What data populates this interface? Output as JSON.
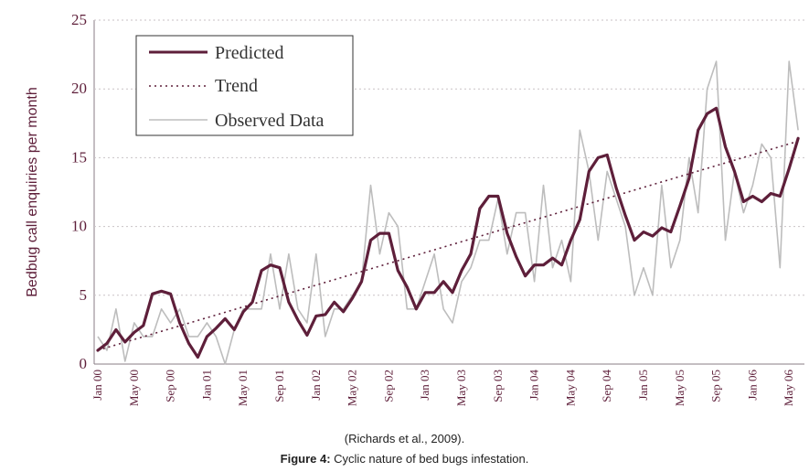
{
  "chart_data": {
    "type": "line",
    "title": "",
    "xlabel": "",
    "ylabel": "Bedbug call enquiries per month",
    "ylim": [
      0,
      25
    ],
    "yticks": [
      "0",
      "5",
      "10",
      "15",
      "20",
      "25"
    ],
    "xlim": [
      0,
      77
    ],
    "x_tick_labels": [
      "Jan 00",
      "May 00",
      "Sep 00",
      "Jan 01",
      "May 01",
      "Sep 01",
      "Jan 02",
      "May 02",
      "Sep 02",
      "Jan 03",
      "May 03",
      "Sep 03",
      "Jan 04",
      "May 04",
      "Sep 04",
      "Jan 05",
      "May 05",
      "Sep 05",
      "Jan 06",
      "May 06"
    ],
    "x_tick_months": [
      0,
      4,
      8,
      12,
      16,
      20,
      24,
      28,
      32,
      36,
      40,
      44,
      48,
      52,
      56,
      60,
      64,
      68,
      72,
      76
    ],
    "legend": {
      "position": "top-left",
      "entries": [
        "Predicted",
        "Trend",
        "Observed Data"
      ]
    },
    "series": [
      {
        "name": "Predicted",
        "style": "solid-thick",
        "color": "#5e1f3a",
        "values": [
          1.0,
          1.5,
          2.5,
          1.6,
          2.3,
          2.8,
          5.1,
          5.3,
          5.1,
          3.0,
          1.5,
          0.5,
          2.0,
          2.6,
          3.3,
          2.5,
          3.8,
          4.5,
          6.8,
          7.2,
          7.0,
          4.5,
          3.2,
          2.1,
          3.5,
          3.6,
          4.5,
          3.8,
          4.8,
          6.0,
          9.0,
          9.5,
          9.5,
          6.8,
          5.6,
          4.0,
          5.2,
          5.2,
          6.0,
          5.2,
          6.8,
          8.0,
          11.3,
          12.2,
          12.2,
          9.5,
          7.8,
          6.4,
          7.2,
          7.2,
          7.7,
          7.2,
          9.0,
          10.5,
          14.0,
          15.0,
          15.2,
          12.8,
          10.8,
          9.0,
          9.6,
          9.3,
          9.9,
          9.6,
          11.5,
          13.5,
          17.0,
          18.2,
          18.6,
          15.8,
          14.0,
          11.8,
          12.2,
          11.8,
          12.4,
          12.2,
          14.2,
          16.4
        ]
      },
      {
        "name": "Trend",
        "style": "dotted",
        "color": "#5e1f3a",
        "x": [
          0,
          77
        ],
        "values": [
          1.0,
          16.2
        ]
      },
      {
        "name": "Observed Data",
        "style": "solid-thin",
        "color": "#bdbdbd",
        "values": [
          2.0,
          1.0,
          4.0,
          0.2,
          3.0,
          2.0,
          2.0,
          4.0,
          3.0,
          4.0,
          2.0,
          2.0,
          3.0,
          2.0,
          0.0,
          2.5,
          4.0,
          4.0,
          4.0,
          8.0,
          4.0,
          8.0,
          4.0,
          3.0,
          8.0,
          2.0,
          4.0,
          4.0,
          5.0,
          6.0,
          13.0,
          8.0,
          11.0,
          10.0,
          4.0,
          4.0,
          6.0,
          8.0,
          4.0,
          3.0,
          6.0,
          7.0,
          9.0,
          9.0,
          12.0,
          8.0,
          11.0,
          11.0,
          6.0,
          13.0,
          7.0,
          9.0,
          6.0,
          17.0,
          14.0,
          9.0,
          14.0,
          12.0,
          10.0,
          5.0,
          7.0,
          5.0,
          13.0,
          7.0,
          9.0,
          15.0,
          11.0,
          20.0,
          22.0,
          9.0,
          14.0,
          11.0,
          13.0,
          16.0,
          15.0,
          7.0,
          22.0,
          17.0
        ]
      }
    ]
  },
  "captions": {
    "source": "(Richards et al., 2009).",
    "figure_label": "Figure 4:",
    "figure_text": " Cyclic nature of bed bugs infestation."
  }
}
